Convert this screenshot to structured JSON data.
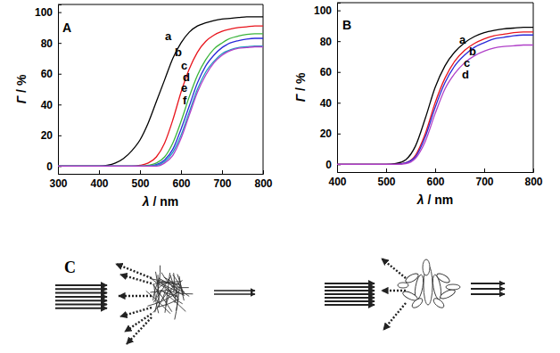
{
  "chart_data": [
    {
      "type": "line",
      "title": "A",
      "xlabel": "λ / nm",
      "ylabel": "Γ / %",
      "x": [
        300,
        320,
        340,
        360,
        380,
        400,
        420,
        440,
        460,
        480,
        500,
        520,
        540,
        560,
        580,
        600,
        620,
        640,
        660,
        680,
        700,
        720,
        740,
        760,
        780,
        800
      ],
      "xlim": [
        300,
        800
      ],
      "xticks": [
        300,
        400,
        500,
        600,
        700,
        800
      ],
      "ylim": [
        -5,
        105
      ],
      "yticks": [
        0,
        20,
        40,
        60,
        80,
        100
      ],
      "series": [
        {
          "name": "a",
          "color": "#000000",
          "values": [
            0,
            0,
            0,
            0,
            0,
            0,
            0.5,
            2,
            5,
            10,
            17,
            28,
            42,
            56,
            70,
            80,
            87,
            91,
            93,
            94.5,
            95.5,
            96,
            96.5,
            97,
            97,
            97
          ]
        },
        {
          "name": "b",
          "color": "#e8141c",
          "values": [
            0,
            0,
            0,
            0,
            0,
            0,
            0,
            0,
            0,
            0,
            0.5,
            2,
            6,
            15,
            30,
            48,
            63,
            74,
            81,
            85,
            87.5,
            89,
            90,
            90.5,
            91,
            91
          ]
        },
        {
          "name": "c",
          "color": "#3cb43c",
          "values": [
            0,
            0,
            0,
            0,
            0,
            0,
            0,
            0,
            0,
            0,
            0,
            0.5,
            2,
            6,
            15,
            29,
            45,
            59,
            69,
            76,
            80,
            83,
            84.5,
            85.5,
            86,
            86
          ]
        },
        {
          "name": "d",
          "color": "#2a2ad8",
          "values": [
            0,
            0,
            0,
            0,
            0,
            0,
            0,
            0,
            0,
            0,
            0,
            0,
            1,
            4,
            11,
            24,
            39,
            54,
            65,
            72,
            77,
            80,
            81.5,
            82.5,
            83,
            83
          ]
        },
        {
          "name": "e",
          "color": "#1a9cc0",
          "values": [
            0,
            0,
            0,
            0,
            0,
            0,
            0,
            0,
            0,
            0,
            0,
            0,
            0.5,
            3,
            9,
            20,
            35,
            50,
            61,
            68,
            73,
            75.5,
            77,
            77.5,
            78,
            78
          ]
        },
        {
          "name": "f",
          "color": "#b040c8",
          "values": [
            0,
            0,
            0,
            0,
            0,
            0,
            0,
            0,
            0,
            0,
            0,
            0,
            0,
            2,
            7,
            18,
            33,
            48,
            59,
            67,
            72,
            75,
            76.5,
            77,
            77.5,
            77.5
          ]
        }
      ]
    },
    {
      "type": "line",
      "title": "B",
      "xlabel": "λ / nm",
      "ylabel": "Γ / %",
      "x": [
        400,
        420,
        440,
        460,
        480,
        500,
        520,
        540,
        560,
        580,
        600,
        620,
        640,
        660,
        680,
        700,
        720,
        740,
        760,
        780,
        800
      ],
      "xlim": [
        400,
        800
      ],
      "xticks": [
        400,
        500,
        600,
        700,
        800
      ],
      "ylim": [
        -5,
        105
      ],
      "yticks": [
        0,
        20,
        40,
        60,
        80,
        100
      ],
      "series": [
        {
          "name": "a",
          "color": "#000000",
          "values": [
            0,
            0,
            0,
            0,
            0,
            0,
            0.5,
            3,
            12,
            30,
            50,
            64,
            73,
            79,
            83,
            85.5,
            87,
            88,
            88.5,
            89,
            89
          ]
        },
        {
          "name": "b",
          "color": "#e8141c",
          "values": [
            0,
            0,
            0,
            0,
            0,
            0,
            0,
            1,
            6,
            20,
            40,
            56,
            67,
            74,
            78.5,
            81.5,
            83.5,
            84.5,
            85.5,
            86,
            86
          ]
        },
        {
          "name": "c",
          "color": "#2a2ad8",
          "values": [
            0,
            0,
            0,
            0,
            0,
            0,
            0,
            1,
            5,
            18,
            37,
            53,
            64,
            71,
            76,
            79,
            81.5,
            82.5,
            83.5,
            84,
            84
          ]
        },
        {
          "name": "d",
          "color": "#b040c8",
          "values": [
            0,
            0,
            0,
            0,
            0,
            0,
            0,
            0.5,
            4,
            15,
            33,
            49,
            59,
            66,
            70.5,
            73.5,
            75.5,
            76.5,
            77,
            77.5,
            77.5
          ]
        }
      ]
    }
  ],
  "diagram": {
    "label": "C"
  }
}
